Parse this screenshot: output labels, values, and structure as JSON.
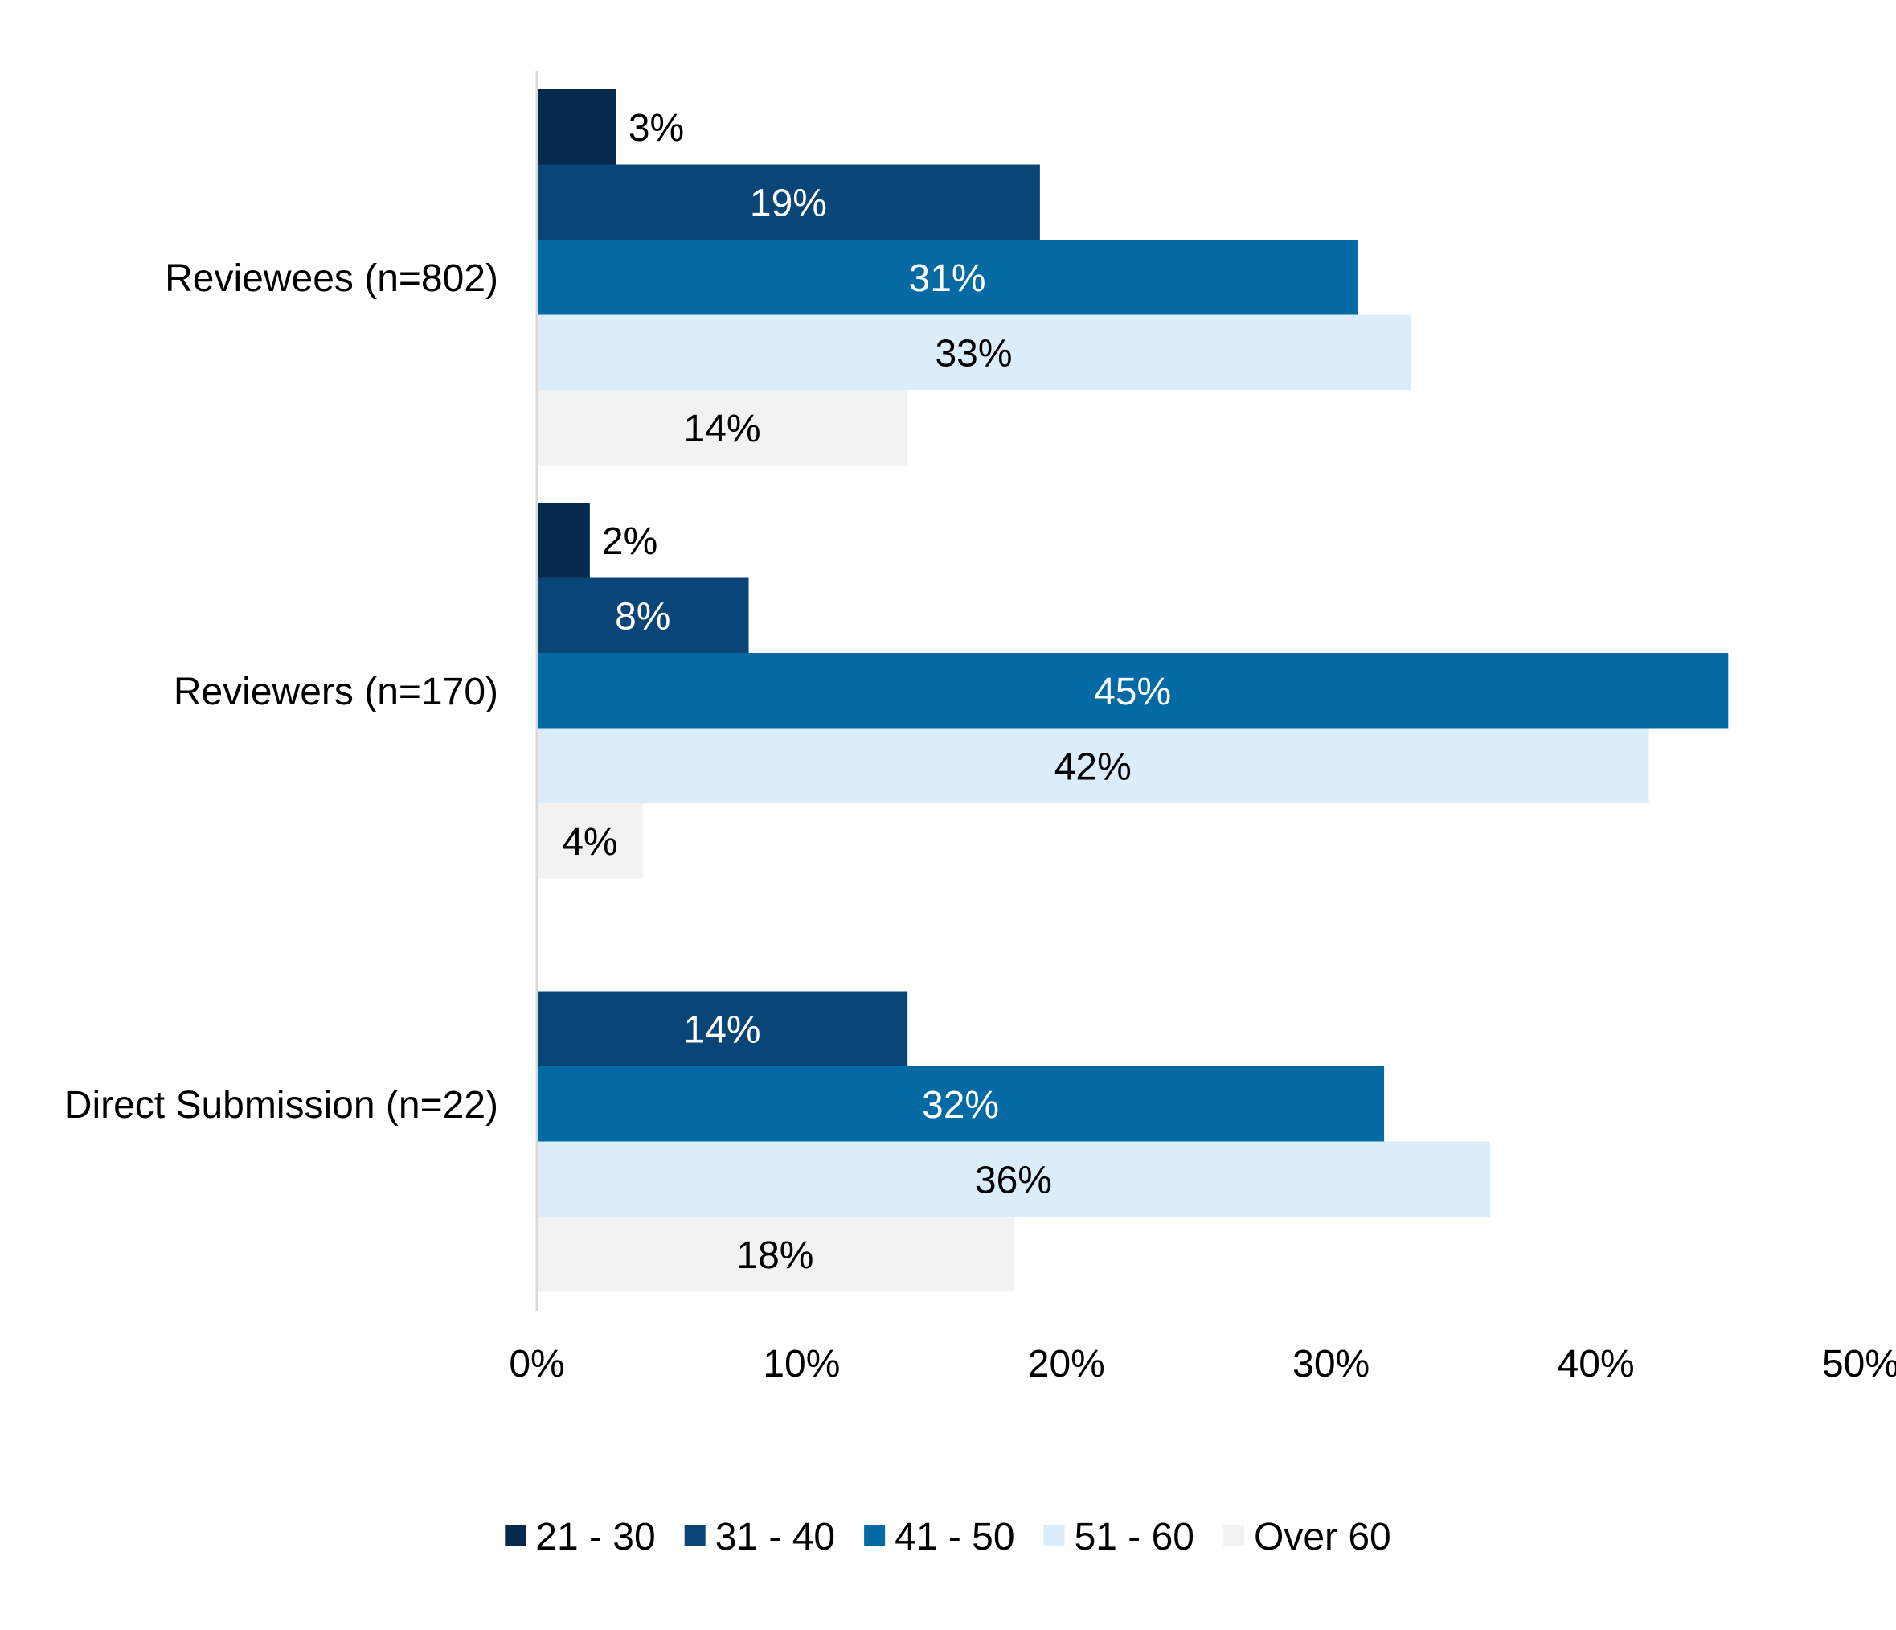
{
  "chart_data": {
    "type": "bar",
    "orientation": "horizontal",
    "title": "",
    "xlabel": "",
    "ylabel": "",
    "categories": [
      "Reviewees (n=802)",
      "Reviewers (n=170)",
      "Direct Submission (n=22)"
    ],
    "series": [
      {
        "name": "21 - 30",
        "color": "#062a4e",
        "label_color": "#000000",
        "values": [
          3,
          2,
          0
        ],
        "labels": [
          "3%",
          "2%",
          ""
        ]
      },
      {
        "name": "31 - 40",
        "color": "#0a4578",
        "label_color": "#ffffff",
        "values": [
          19,
          8,
          14
        ],
        "labels": [
          "19%",
          "8%",
          "14%"
        ]
      },
      {
        "name": "41 - 50",
        "color": "#046aa3",
        "label_color": "#ffffff",
        "values": [
          31,
          45,
          32
        ],
        "labels": [
          "31%",
          "45%",
          "32%"
        ]
      },
      {
        "name": "51 - 60",
        "color": "#dbedfa",
        "label_color": "#000000",
        "values": [
          33,
          42,
          36
        ],
        "labels": [
          "33%",
          "42%",
          "36%"
        ]
      },
      {
        "name": "Over 60",
        "color": "#f2f2f2",
        "label_color": "#000000",
        "values": [
          14,
          4,
          18
        ],
        "labels": [
          "14%",
          "4%",
          "18%"
        ]
      }
    ],
    "xlim": [
      0,
      50
    ],
    "ticks": [
      0,
      10,
      20,
      30,
      40,
      50
    ],
    "tick_labels": [
      "0%",
      "10%",
      "20%",
      "30%",
      "40%",
      "50%"
    ],
    "grid": false,
    "legend_position": "bottom"
  }
}
